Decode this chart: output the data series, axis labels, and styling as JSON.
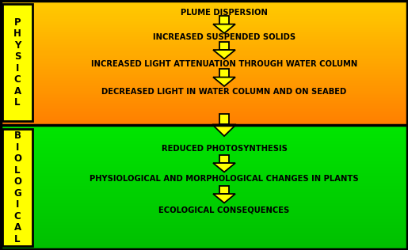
{
  "physical_label": "P\nH\nY\nS\nI\nC\nA\nL",
  "biological_label": "B\nI\nO\nL\nO\nG\nI\nC\nA\nL",
  "physical_items": [
    "PLUME DISPERSION",
    "INCREASED SUSPENDED SOLIDS",
    "INCREASED LIGHT ATTENUATION THROUGH WATER COLUMN",
    "DECREASED LIGHT IN WATER COLUMN AND ON SEABED"
  ],
  "biological_items": [
    "REDUCED PHOTOSYNTHESIS",
    "PHYSIOLOGICAL AND MORPHOLOGICAL CHANGES IN PLANTS",
    "ECOLOGICAL CONSEQUENCES"
  ],
  "phys_split": 0.515,
  "label_box_color": "#FFFF00",
  "arrow_face_color": "#FFFF00",
  "arrow_edge_color": "#000000"
}
